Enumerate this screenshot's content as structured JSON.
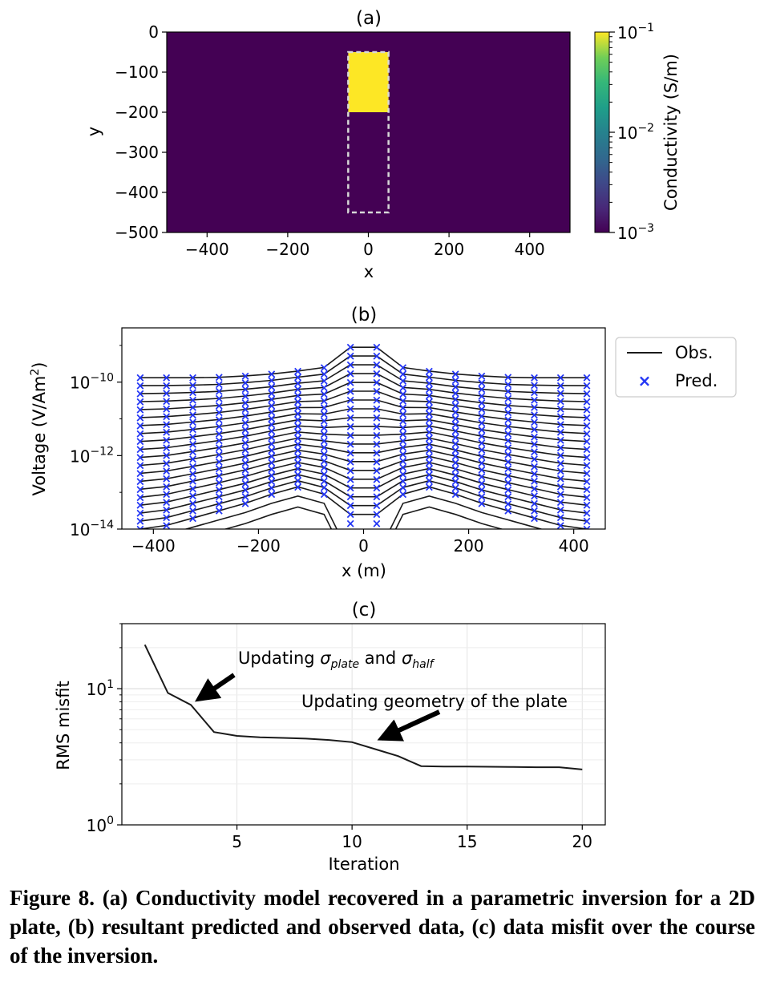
{
  "chart_data": [
    {
      "type": "heatmap",
      "title": "(a)",
      "xlabel": "x",
      "ylabel": "y",
      "xlim": [
        -500,
        500
      ],
      "ylim": [
        -500,
        0
      ],
      "xticks": [
        "−400",
        "−200",
        "0",
        "200",
        "400"
      ],
      "xtick_values": [
        -400,
        -200,
        0,
        200,
        400
      ],
      "yticks": [
        "0",
        "−100",
        "−200",
        "−300",
        "−400",
        "−500"
      ],
      "ytick_values": [
        0,
        -100,
        -200,
        -300,
        -400,
        -500
      ],
      "background_conductivity": 0.001,
      "plate": {
        "x": [
          -50,
          50
        ],
        "y": [
          -200,
          -50
        ],
        "conductivity": 0.1
      },
      "dashed_box": {
        "x": [
          -50,
          50
        ],
        "y": [
          -450,
          -50
        ]
      },
      "colorbar": {
        "label": "Conductivity (S/m)",
        "scale": "log",
        "ticks": [
          {
            "base": "10",
            "exp": "−1"
          },
          {
            "base": "10",
            "exp": "−2"
          },
          {
            "base": "10",
            "exp": "−3"
          }
        ],
        "tick_values": [
          0.1,
          0.01,
          0.001
        ],
        "colormap": "viridis"
      },
      "colors": {
        "low": "#440154",
        "high": "#fde725"
      }
    },
    {
      "type": "line",
      "title": "(b)",
      "xlabel": "x (m)",
      "ylabel_main": "Voltage (V/Am",
      "ylabel_sup": "2",
      "ylabel_end": ")",
      "yscale": "log",
      "xlim": [
        -460,
        460
      ],
      "ylim": [
        1e-14,
        3e-09
      ],
      "xticks": [
        "−400",
        "−200",
        "0",
        "200",
        "400"
      ],
      "xtick_values": [
        -400,
        -200,
        0,
        200,
        400
      ],
      "yticks": [
        {
          "base": "10",
          "exp": "−10"
        },
        {
          "base": "10",
          "exp": "−12"
        },
        {
          "base": "10",
          "exp": "−14"
        }
      ],
      "ytick_values": [
        1e-10,
        1e-12,
        1e-14
      ],
      "x": [
        -425,
        -375,
        -325,
        -275,
        -225,
        -175,
        -125,
        -75,
        -25,
        25,
        75,
        125,
        175,
        225,
        275,
        325,
        375,
        425
      ],
      "n_channels": 20,
      "top_log10": [
        -9.88,
        -9.88,
        -9.88,
        -9.87,
        -9.83,
        -9.78,
        -9.7,
        -9.6,
        -9.05,
        -9.05,
        -9.6,
        -9.7,
        -9.78,
        -9.83,
        -9.87,
        -9.88,
        -9.88,
        -9.88
      ],
      "bottom_log10": [
        -14.0,
        -13.9,
        -13.7,
        -13.5,
        -13.3,
        -13.05,
        -12.85,
        -13.05,
        -13.6,
        -13.6,
        -13.05,
        -12.85,
        -13.05,
        -13.3,
        -13.5,
        -13.7,
        -13.9,
        -14.0
      ],
      "legend": {
        "position": "top-right outside",
        "obs": "Obs.",
        "pred": "Pred."
      },
      "colors": {
        "obs": "#1a1a1a",
        "pred": "#2336f5"
      }
    },
    {
      "type": "line",
      "title": "(c)",
      "xlabel": "Iteration",
      "ylabel": "RMS misfit",
      "yscale": "log",
      "xlim": [
        0,
        21
      ],
      "ylim": [
        1,
        30
      ],
      "xticks": [
        "5",
        "10",
        "15",
        "20"
      ],
      "xtick_values": [
        5,
        10,
        15,
        20
      ],
      "yticks": [
        {
          "base": "10",
          "exp": "1"
        },
        {
          "base": "10",
          "exp": "0"
        }
      ],
      "ytick_values": [
        10,
        1
      ],
      "series": [
        {
          "x": [
            1,
            2,
            3,
            4,
            5,
            6,
            7,
            8,
            9,
            10,
            11,
            12,
            13,
            14,
            15,
            16,
            17,
            18,
            19,
            20
          ],
          "y": [
            21.0,
            9.3,
            7.6,
            4.8,
            4.5,
            4.4,
            4.35,
            4.3,
            4.2,
            4.05,
            3.6,
            3.2,
            2.7,
            2.68,
            2.68,
            2.67,
            2.66,
            2.65,
            2.65,
            2.55
          ]
        }
      ],
      "annotations": [
        {
          "text_parts": [
            "Updating ",
            "σ",
            "plate",
            " and ",
            "σ",
            "half"
          ],
          "arrow_to": [
            3,
            7.6
          ]
        },
        {
          "text": "Updating geometry of the plate",
          "arrow_to": [
            11,
            3.7
          ]
        }
      ],
      "colors": {
        "line": "#1a1a1a"
      }
    }
  ],
  "caption": "Figure 8. (a) Conductivity model recovered in a parametric inversion for a 2D plate, (b) resultant predicted and observed data, (c) data misfit over the course of the inversion."
}
